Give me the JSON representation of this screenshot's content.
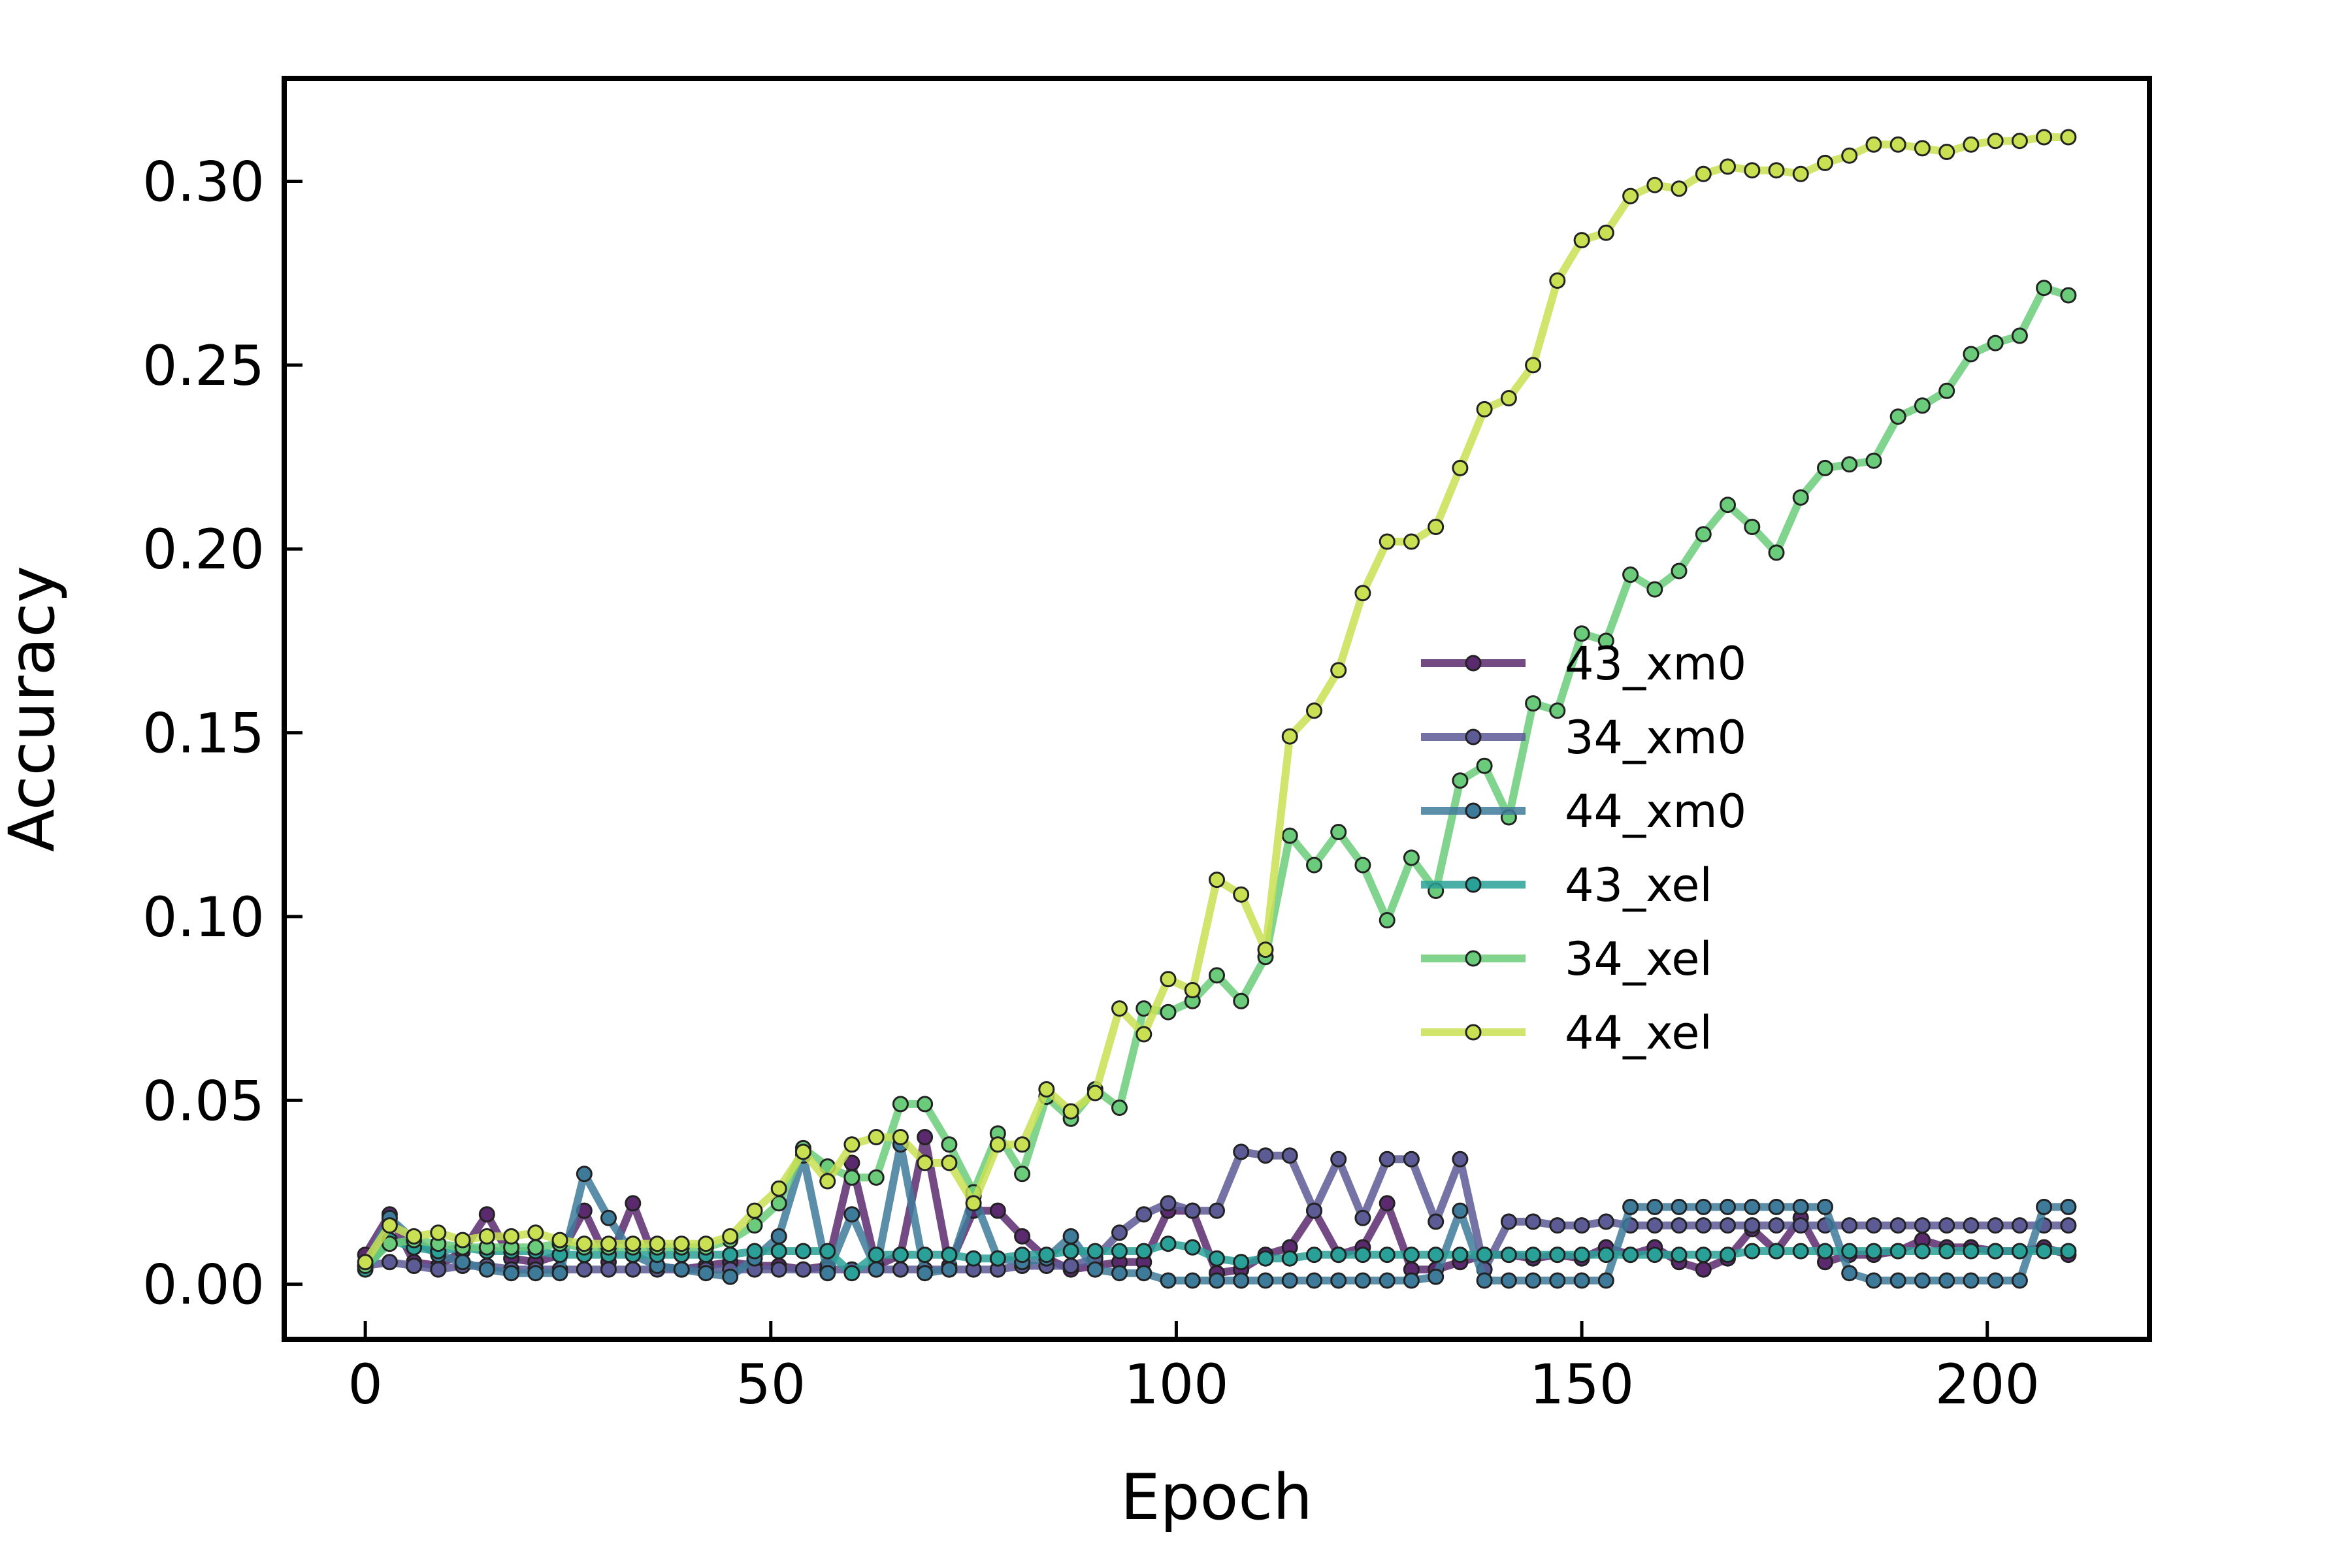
{
  "chart_data": {
    "type": "line",
    "xlabel": "Epoch",
    "ylabel": "Accuracy",
    "xlim": [
      -10,
      220
    ],
    "ylim": [
      -0.015,
      0.328
    ],
    "xticks": [
      0,
      50,
      100,
      150,
      200
    ],
    "yticks": [
      0.0,
      0.05,
      0.1,
      0.15,
      0.2,
      0.25,
      0.3
    ],
    "ytick_labels": [
      "0.00",
      "0.05",
      "0.10",
      "0.15",
      "0.20",
      "0.25",
      "0.30"
    ],
    "grid": false,
    "legend_position": "center-right",
    "series": [
      {
        "name": "43_xm0",
        "color": "#5b2a6e",
        "x": [
          0,
          3,
          6,
          9,
          12,
          15,
          18,
          21,
          24,
          27,
          30,
          33,
          36,
          39,
          42,
          45,
          48,
          51,
          54,
          57,
          60,
          63,
          66,
          69,
          72,
          75,
          78,
          81,
          84,
          87,
          90,
          93,
          96,
          99,
          102,
          105,
          108,
          111,
          114,
          117,
          120,
          123,
          126,
          129,
          132,
          135,
          138,
          141,
          144,
          147,
          150,
          153,
          156,
          159,
          162,
          165,
          168,
          171,
          174,
          177,
          180,
          183,
          186,
          189,
          192,
          195,
          198,
          201,
          204,
          207,
          210
        ],
        "y": [
          0.008,
          0.019,
          0.006,
          0.005,
          0.009,
          0.019,
          0.007,
          0.006,
          0.008,
          0.02,
          0.006,
          0.022,
          0.005,
          0.004,
          0.005,
          0.006,
          0.005,
          0.005,
          0.004,
          0.005,
          0.033,
          0.005,
          0.008,
          0.04,
          0.005,
          0.02,
          0.02,
          0.013,
          0.007,
          0.004,
          0.005,
          0.006,
          0.006,
          0.02,
          0.02,
          0.003,
          0.004,
          0.008,
          0.01,
          0.02,
          0.008,
          0.01,
          0.022,
          0.004,
          0.004,
          0.006,
          0.008,
          0.008,
          0.007,
          0.008,
          0.007,
          0.01,
          0.008,
          0.01,
          0.006,
          0.004,
          0.007,
          0.015,
          0.009,
          0.018,
          0.006,
          0.008,
          0.008,
          0.009,
          0.012,
          0.01,
          0.01,
          0.009,
          0.009,
          0.01,
          0.008
        ]
      },
      {
        "name": "34_xm0",
        "color": "#5d5b96",
        "x": [
          0,
          3,
          6,
          9,
          12,
          15,
          18,
          21,
          24,
          27,
          30,
          33,
          36,
          39,
          42,
          45,
          48,
          51,
          54,
          57,
          60,
          63,
          66,
          69,
          72,
          75,
          78,
          81,
          84,
          87,
          90,
          93,
          96,
          99,
          102,
          105,
          108,
          111,
          114,
          117,
          120,
          123,
          126,
          129,
          132,
          135,
          138,
          141,
          144,
          147,
          150,
          153,
          156,
          159,
          162,
          165,
          168,
          171,
          174,
          177,
          180,
          183,
          186,
          189,
          192,
          195,
          198,
          201,
          204,
          207,
          210
        ],
        "y": [
          0.005,
          0.006,
          0.005,
          0.004,
          0.005,
          0.005,
          0.004,
          0.004,
          0.004,
          0.004,
          0.004,
          0.004,
          0.004,
          0.004,
          0.004,
          0.004,
          0.004,
          0.004,
          0.004,
          0.004,
          0.004,
          0.004,
          0.004,
          0.004,
          0.004,
          0.004,
          0.004,
          0.005,
          0.005,
          0.005,
          0.007,
          0.014,
          0.019,
          0.022,
          0.02,
          0.02,
          0.036,
          0.035,
          0.035,
          0.02,
          0.034,
          0.018,
          0.034,
          0.034,
          0.017,
          0.034,
          0.004,
          0.017,
          0.017,
          0.016,
          0.016,
          0.017,
          0.016,
          0.016,
          0.016,
          0.016,
          0.016,
          0.016,
          0.016,
          0.016,
          0.016,
          0.016,
          0.016,
          0.016,
          0.016,
          0.016,
          0.016,
          0.016,
          0.016,
          0.016,
          0.016
        ]
      },
      {
        "name": "44_xm0",
        "color": "#3e7a99",
        "x": [
          0,
          3,
          6,
          9,
          12,
          15,
          18,
          21,
          24,
          27,
          30,
          33,
          36,
          39,
          42,
          45,
          48,
          51,
          54,
          57,
          60,
          63,
          66,
          69,
          72,
          75,
          78,
          81,
          84,
          87,
          90,
          93,
          96,
          99,
          102,
          105,
          108,
          111,
          114,
          117,
          120,
          123,
          126,
          129,
          132,
          135,
          138,
          141,
          144,
          147,
          150,
          153,
          156,
          159,
          162,
          165,
          168,
          171,
          174,
          177,
          180,
          183,
          186,
          189,
          192,
          195,
          198,
          201,
          204,
          207,
          210
        ],
        "y": [
          0.005,
          0.018,
          0.012,
          0.008,
          0.006,
          0.004,
          0.003,
          0.003,
          0.003,
          0.03,
          0.018,
          0.008,
          0.005,
          0.004,
          0.003,
          0.002,
          0.007,
          0.013,
          0.035,
          0.003,
          0.019,
          0.004,
          0.038,
          0.003,
          0.004,
          0.024,
          0.007,
          0.006,
          0.007,
          0.013,
          0.004,
          0.003,
          0.003,
          0.001,
          0.001,
          0.001,
          0.001,
          0.001,
          0.001,
          0.001,
          0.001,
          0.001,
          0.001,
          0.001,
          0.002,
          0.02,
          0.001,
          0.001,
          0.001,
          0.001,
          0.001,
          0.001,
          0.021,
          0.021,
          0.021,
          0.021,
          0.021,
          0.021,
          0.021,
          0.021,
          0.021,
          0.003,
          0.001,
          0.001,
          0.001,
          0.001,
          0.001,
          0.001,
          0.001,
          0.021,
          0.021
        ]
      },
      {
        "name": "43_xel",
        "color": "#2aa198",
        "x": [
          0,
          3,
          6,
          9,
          12,
          15,
          18,
          21,
          24,
          27,
          30,
          33,
          36,
          39,
          42,
          45,
          48,
          51,
          54,
          57,
          60,
          63,
          66,
          69,
          72,
          75,
          78,
          81,
          84,
          87,
          90,
          93,
          96,
          99,
          102,
          105,
          108,
          111,
          114,
          117,
          120,
          123,
          126,
          129,
          132,
          135,
          138,
          141,
          144,
          147,
          150,
          153,
          156,
          159,
          162,
          165,
          168,
          171,
          174,
          177,
          180,
          183,
          186,
          189,
          192,
          195,
          198,
          201,
          204,
          207,
          210
        ],
        "y": [
          0.004,
          0.012,
          0.01,
          0.009,
          0.01,
          0.009,
          0.009,
          0.009,
          0.008,
          0.008,
          0.008,
          0.008,
          0.008,
          0.008,
          0.008,
          0.008,
          0.009,
          0.009,
          0.009,
          0.009,
          0.003,
          0.008,
          0.008,
          0.008,
          0.008,
          0.007,
          0.007,
          0.008,
          0.008,
          0.009,
          0.009,
          0.009,
          0.009,
          0.011,
          0.01,
          0.007,
          0.006,
          0.007,
          0.007,
          0.008,
          0.008,
          0.008,
          0.008,
          0.008,
          0.008,
          0.008,
          0.008,
          0.008,
          0.008,
          0.008,
          0.008,
          0.008,
          0.008,
          0.008,
          0.008,
          0.008,
          0.008,
          0.009,
          0.009,
          0.009,
          0.009,
          0.009,
          0.009,
          0.009,
          0.009,
          0.009,
          0.009,
          0.009,
          0.009,
          0.009,
          0.009
        ]
      },
      {
        "name": "34_xel",
        "color": "#6acc7a",
        "x": [
          0,
          3,
          6,
          9,
          12,
          15,
          18,
          21,
          24,
          27,
          30,
          33,
          36,
          39,
          42,
          45,
          48,
          51,
          54,
          57,
          60,
          63,
          66,
          69,
          72,
          75,
          78,
          81,
          84,
          87,
          90,
          93,
          96,
          99,
          102,
          105,
          108,
          111,
          114,
          117,
          120,
          123,
          126,
          129,
          132,
          135,
          138,
          141,
          144,
          147,
          150,
          153,
          156,
          159,
          162,
          165,
          168,
          171,
          174,
          177,
          180,
          183,
          186,
          189,
          192,
          195,
          198,
          201,
          204,
          207,
          210
        ],
        "y": [
          0.005,
          0.011,
          0.012,
          0.011,
          0.01,
          0.01,
          0.01,
          0.01,
          0.011,
          0.01,
          0.01,
          0.01,
          0.01,
          0.01,
          0.01,
          0.012,
          0.016,
          0.022,
          0.037,
          0.032,
          0.029,
          0.029,
          0.049,
          0.049,
          0.038,
          0.025,
          0.041,
          0.03,
          0.051,
          0.045,
          0.053,
          0.048,
          0.075,
          0.074,
          0.077,
          0.084,
          0.077,
          0.089,
          0.122,
          0.114,
          0.123,
          0.114,
          0.099,
          0.116,
          0.107,
          0.137,
          0.141,
          0.127,
          0.158,
          0.156,
          0.177,
          0.175,
          0.193,
          0.189,
          0.194,
          0.204,
          0.212,
          0.206,
          0.199,
          0.214,
          0.222,
          0.223,
          0.224,
          0.236,
          0.239,
          0.243,
          0.253,
          0.256,
          0.258,
          0.271,
          0.269
        ]
      },
      {
        "name": "44_xel",
        "color": "#c9e052",
        "x": [
          0,
          3,
          6,
          9,
          12,
          15,
          18,
          21,
          24,
          27,
          30,
          33,
          36,
          39,
          42,
          45,
          48,
          51,
          54,
          57,
          60,
          63,
          66,
          69,
          72,
          75,
          78,
          81,
          84,
          87,
          90,
          93,
          96,
          99,
          102,
          105,
          108,
          111,
          114,
          117,
          120,
          123,
          126,
          129,
          132,
          135,
          138,
          141,
          144,
          147,
          150,
          153,
          156,
          159,
          162,
          165,
          168,
          171,
          174,
          177,
          180,
          183,
          186,
          189,
          192,
          195,
          198,
          201,
          204,
          207,
          210
        ],
        "y": [
          0.006,
          0.016,
          0.013,
          0.014,
          0.012,
          0.013,
          0.013,
          0.014,
          0.012,
          0.011,
          0.011,
          0.011,
          0.011,
          0.011,
          0.011,
          0.013,
          0.02,
          0.026,
          0.036,
          0.028,
          0.038,
          0.04,
          0.04,
          0.033,
          0.033,
          0.022,
          0.038,
          0.038,
          0.053,
          0.047,
          0.052,
          0.075,
          0.068,
          0.083,
          0.08,
          0.11,
          0.106,
          0.091,
          0.149,
          0.156,
          0.167,
          0.188,
          0.202,
          0.202,
          0.206,
          0.222,
          0.238,
          0.241,
          0.25,
          0.273,
          0.284,
          0.286,
          0.296,
          0.299,
          0.298,
          0.302,
          0.304,
          0.303,
          0.303,
          0.302,
          0.305,
          0.307,
          0.31,
          0.31,
          0.309,
          0.308,
          0.31,
          0.311,
          0.311,
          0.312,
          0.312
        ]
      }
    ]
  }
}
